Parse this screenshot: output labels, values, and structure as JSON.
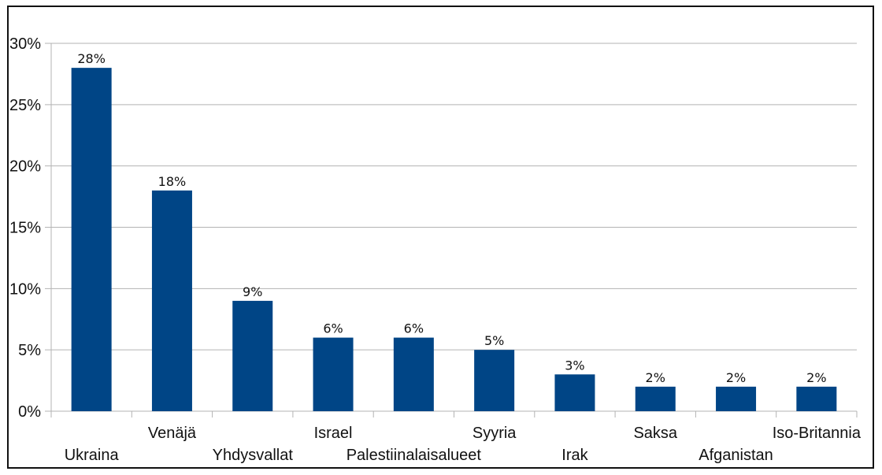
{
  "chart_data": {
    "type": "bar",
    "categories": [
      "Ukraina",
      "Venäjä",
      "Yhdysvallat",
      "Israel",
      "Palestiinalaisalueet",
      "Syyria",
      "Irak",
      "Saksa",
      "Afganistan",
      "Iso-Britannia"
    ],
    "values": [
      28,
      18,
      9,
      6,
      6,
      5,
      3,
      2,
      2,
      2
    ],
    "data_labels": [
      "28%",
      "18%",
      "9%",
      "6%",
      "6%",
      "5%",
      "3%",
      "2%",
      "2%",
      "2%"
    ],
    "y_ticks": [
      "0%",
      "5%",
      "10%",
      "15%",
      "20%",
      "25%",
      "30%"
    ],
    "ylim": [
      0,
      30
    ],
    "grid": true,
    "legend": "none",
    "colors": {
      "bar": "#004586",
      "grid": "#b3b3b3",
      "axis": "#b3b3b3"
    }
  }
}
